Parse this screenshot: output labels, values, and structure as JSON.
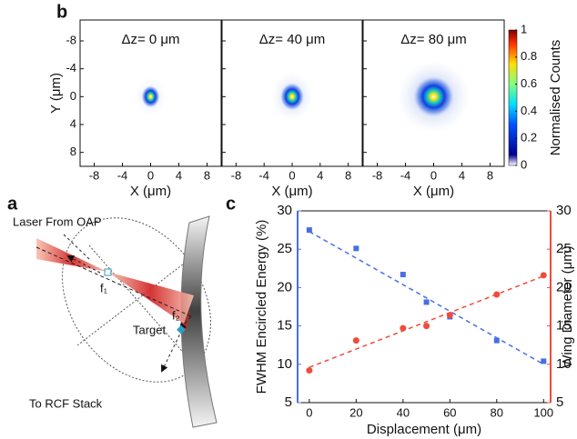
{
  "panel_labels": {
    "a": "a",
    "b": "b",
    "c": "c"
  },
  "diagram": {
    "laser": "Laser From OAP",
    "f1": "f₁",
    "f2": "f₂",
    "target": "Target",
    "rcf": "To RCF Stack"
  },
  "chart_data": [
    {
      "type": "heatmap",
      "subplot_titles": [
        "Δz= 0 μm",
        "Δz= 40 μm",
        "Δz= 80 μm"
      ],
      "x_label": "X (μm)",
      "y_label": "Y (μm)",
      "xlim": [
        -10,
        10
      ],
      "xticks": [
        -8,
        -4,
        0,
        4,
        8
      ],
      "ylim": [
        10,
        -11
      ],
      "yticks": [
        -8,
        -4,
        0,
        4,
        8
      ],
      "clim": [
        0,
        1
      ],
      "cticks": [
        0,
        0.2,
        0.4,
        0.6,
        0.8,
        1
      ],
      "colorbar_label": "Normalised Counts"
    },
    {
      "type": "scatter",
      "x_label": "Displacement (μm)",
      "y_label": "FWHM Encircled Energy (%)",
      "y2_label": "Wing Diameter (μm)",
      "xlim": [
        -5,
        103
      ],
      "xticks": [
        0,
        20,
        40,
        60,
        80,
        100
      ],
      "ylim": [
        5,
        30
      ],
      "yticks": [
        5,
        10,
        15,
        20,
        25,
        30
      ],
      "y2lim": [
        5,
        30
      ],
      "y2ticks": [
        5,
        10,
        15,
        20,
        25,
        30
      ],
      "series": [
        {
          "color": "#4a6fe3",
          "marker": "square",
          "x": [
            0,
            20,
            40,
            50,
            60,
            80,
            100
          ],
          "values": [
            27.5,
            25.1,
            21.7,
            18.1,
            16.2,
            13.1,
            10.4
          ]
        },
        {
          "color": "#f04b3c",
          "marker": "circle",
          "axis": "y2",
          "x": [
            0,
            20,
            40,
            50,
            60,
            80,
            100
          ],
          "values": [
            9.2,
            13.1,
            14.7,
            15.0,
            16.4,
            19.1,
            21.6
          ]
        }
      ],
      "fits": [
        {
          "color": "#4a6fe3",
          "x": [
            0,
            100
          ],
          "values": [
            27.3,
            10.0
          ]
        },
        {
          "color": "#f04b3c",
          "axis": "y2",
          "x": [
            0,
            100
          ],
          "values": [
            9.6,
            21.5
          ]
        }
      ]
    }
  ]
}
